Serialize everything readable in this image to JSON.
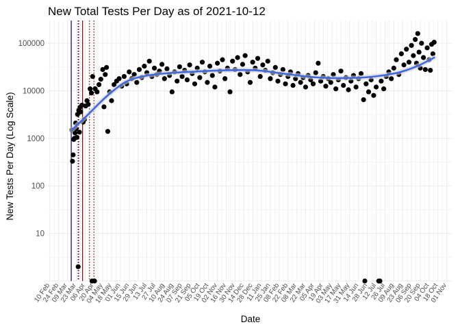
{
  "chart_data": {
    "type": "scatter",
    "title": "New Total Tests Per Day as of 2021-10-12",
    "xlabel": "Date",
    "ylabel": "New Tests Per Day (Log Scale)",
    "y_scale": "log10",
    "ylim": [
      1,
      300000
    ],
    "y_ticks": [
      10,
      100,
      1000,
      10000,
      100000
    ],
    "y_tick_labels": [
      "10",
      "100",
      "1000",
      "10000",
      "100000"
    ],
    "x_range": [
      "2020-02-07",
      "2021-11-09"
    ],
    "x_ticks": [
      "2020-02-10",
      "2020-02-24",
      "2020-03-09",
      "2020-03-23",
      "2020-04-06",
      "2020-04-20",
      "2020-05-04",
      "2020-05-18",
      "2020-06-01",
      "2020-06-15",
      "2020-06-29",
      "2020-07-13",
      "2020-07-27",
      "2020-08-10",
      "2020-08-24",
      "2020-09-07",
      "2020-09-21",
      "2020-10-05",
      "2020-10-19",
      "2020-11-02",
      "2020-11-16",
      "2020-11-30",
      "2020-12-14",
      "2020-12-28",
      "2021-01-11",
      "2021-01-25",
      "2021-02-08",
      "2021-02-22",
      "2021-03-08",
      "2021-03-22",
      "2021-04-05",
      "2021-04-19",
      "2021-05-03",
      "2021-05-17",
      "2021-05-31",
      "2021-06-14",
      "2021-06-28",
      "2021-07-12",
      "2021-07-26",
      "2021-08-09",
      "2021-08-23",
      "2021-09-06",
      "2021-09-20",
      "2021-10-04",
      "2021-10-18",
      "2021-11-01"
    ],
    "x_tick_labels": [
      "10 Feb",
      "24 Feb",
      "09 Mar",
      "23 Mar",
      "06 Apr",
      "20 Apr",
      "04 May",
      "18 May",
      "01 Jun",
      "15 Jun",
      "29 Jun",
      "13 Jul",
      "27 Jul",
      "10 Aug",
      "24 Aug",
      "07 Sep",
      "21 Sep",
      "05 Oct",
      "19 Oct",
      "02 Nov",
      "16 Nov",
      "30 Nov",
      "14 Dec",
      "28 Dec",
      "11 Jan",
      "25 Jan",
      "08 Feb",
      "22 Feb",
      "08 Mar",
      "22 Mar",
      "05 Apr",
      "19 Apr",
      "03 May",
      "17 May",
      "31 May",
      "14 Jun",
      "28 Jun",
      "12 Jul",
      "26 Jul",
      "09 Aug",
      "23 Aug",
      "06 Sep",
      "20 Sep",
      "04 Oct",
      "18 Oct",
      "01 Nov"
    ],
    "grid": true,
    "vlines": [
      {
        "x": "2020-03-15",
        "color": "#00008b",
        "style": "solid"
      },
      {
        "x": "2020-03-26",
        "color": "#00008b",
        "style": "dotted"
      },
      {
        "x": "2020-03-27",
        "color": "#8b0000",
        "style": "dotted"
      },
      {
        "x": "2020-04-02",
        "color": "#8b0000",
        "style": "solid"
      },
      {
        "x": "2020-04-13",
        "color": "#8b0000",
        "style": "dotted"
      },
      {
        "x": "2020-04-20",
        "color": "#8b0000",
        "style": "dotted"
      }
    ],
    "trend": {
      "color": "#4169e1",
      "points": [
        {
          "x": "2020-03-16",
          "y": 1500
        },
        {
          "x": "2020-04-10",
          "y": 3100
        },
        {
          "x": "2020-05-10",
          "y": 7600
        },
        {
          "x": "2020-06-10",
          "y": 15500
        },
        {
          "x": "2020-07-10",
          "y": 20500
        },
        {
          "x": "2020-08-15",
          "y": 23500
        },
        {
          "x": "2020-10-01",
          "y": 25500
        },
        {
          "x": "2020-11-15",
          "y": 27000
        },
        {
          "x": "2021-01-01",
          "y": 27000
        },
        {
          "x": "2021-02-15",
          "y": 23000
        },
        {
          "x": "2021-04-01",
          "y": 19500
        },
        {
          "x": "2021-05-15",
          "y": 18500
        },
        {
          "x": "2021-07-01",
          "y": 19500
        },
        {
          "x": "2021-08-15",
          "y": 24000
        },
        {
          "x": "2021-09-15",
          "y": 33000
        },
        {
          "x": "2021-10-12",
          "y": 50000
        }
      ]
    },
    "point_color": "#000000",
    "series": [
      {
        "points": [
          {
            "x": "2020-03-16",
            "y": 1500
          },
          {
            "x": "2020-03-17",
            "y": 330
          },
          {
            "x": "2020-03-18",
            "y": 450
          },
          {
            "x": "2020-03-19",
            "y": 950
          },
          {
            "x": "2020-03-20",
            "y": 1000
          },
          {
            "x": "2020-03-21",
            "y": 1300
          },
          {
            "x": "2020-03-22",
            "y": 2100
          },
          {
            "x": "2020-03-23",
            "y": 1600
          },
          {
            "x": "2020-03-24",
            "y": 1050
          },
          {
            "x": "2020-03-25",
            "y": 3200
          },
          {
            "x": "2020-03-26",
            "y": 2
          },
          {
            "x": "2020-03-27",
            "y": 3900
          },
          {
            "x": "2020-03-28",
            "y": 1350
          },
          {
            "x": "2020-03-29",
            "y": 4500
          },
          {
            "x": "2020-03-30",
            "y": 3600
          },
          {
            "x": "2020-04-01",
            "y": 5000
          },
          {
            "x": "2020-04-03",
            "y": 2200
          },
          {
            "x": "2020-04-05",
            "y": 2500
          },
          {
            "x": "2020-04-07",
            "y": 4800
          },
          {
            "x": "2020-04-09",
            "y": 6200
          },
          {
            "x": "2020-04-11",
            "y": 5200
          },
          {
            "x": "2020-04-14",
            "y": 11000
          },
          {
            "x": "2020-04-16",
            "y": 9000
          },
          {
            "x": "2020-04-17",
            "y": 1
          },
          {
            "x": "2020-04-18",
            "y": 20000
          },
          {
            "x": "2020-04-21",
            "y": 1
          },
          {
            "x": "2020-04-22",
            "y": 11000
          },
          {
            "x": "2020-04-25",
            "y": 9500
          },
          {
            "x": "2020-04-28",
            "y": 13500
          },
          {
            "x": "2020-05-01",
            "y": 17500
          },
          {
            "x": "2020-05-04",
            "y": 28000
          },
          {
            "x": "2020-05-06",
            "y": 4600
          },
          {
            "x": "2020-05-08",
            "y": 22000
          },
          {
            "x": "2020-05-10",
            "y": 31000
          },
          {
            "x": "2020-05-12",
            "y": 1400
          },
          {
            "x": "2020-05-15",
            "y": 9500
          },
          {
            "x": "2020-05-18",
            "y": 6200
          },
          {
            "x": "2020-05-22",
            "y": 13500
          },
          {
            "x": "2020-05-26",
            "y": 16000
          },
          {
            "x": "2020-05-30",
            "y": 18000
          },
          {
            "x": "2020-06-03",
            "y": 12500
          },
          {
            "x": "2020-06-07",
            "y": 20000
          },
          {
            "x": "2020-06-11",
            "y": 14000
          },
          {
            "x": "2020-06-15",
            "y": 25000
          },
          {
            "x": "2020-06-19",
            "y": 18000
          },
          {
            "x": "2020-06-23",
            "y": 22000
          },
          {
            "x": "2020-06-27",
            "y": 15000
          },
          {
            "x": "2020-07-01",
            "y": 28000
          },
          {
            "x": "2020-07-05",
            "y": 19000
          },
          {
            "x": "2020-07-09",
            "y": 33000
          },
          {
            "x": "2020-07-13",
            "y": 24000
          },
          {
            "x": "2020-07-17",
            "y": 42000
          },
          {
            "x": "2020-07-21",
            "y": 20000
          },
          {
            "x": "2020-07-25",
            "y": 30000
          },
          {
            "x": "2020-07-29",
            "y": 22000
          },
          {
            "x": "2020-08-02",
            "y": 26000
          },
          {
            "x": "2020-08-06",
            "y": 36000
          },
          {
            "x": "2020-08-10",
            "y": 18000
          },
          {
            "x": "2020-08-14",
            "y": 29000
          },
          {
            "x": "2020-08-18",
            "y": 21000
          },
          {
            "x": "2020-08-22",
            "y": 9500
          },
          {
            "x": "2020-08-26",
            "y": 25000
          },
          {
            "x": "2020-08-30",
            "y": 16000
          },
          {
            "x": "2020-09-03",
            "y": 32000
          },
          {
            "x": "2020-09-07",
            "y": 20000
          },
          {
            "x": "2020-09-11",
            "y": 27000
          },
          {
            "x": "2020-09-15",
            "y": 17000
          },
          {
            "x": "2020-09-19",
            "y": 35000
          },
          {
            "x": "2020-09-23",
            "y": 23000
          },
          {
            "x": "2020-09-27",
            "y": 14000
          },
          {
            "x": "2020-10-01",
            "y": 30000
          },
          {
            "x": "2020-10-05",
            "y": 19000
          },
          {
            "x": "2020-10-09",
            "y": 40000
          },
          {
            "x": "2020-10-13",
            "y": 25000
          },
          {
            "x": "2020-10-17",
            "y": 15000
          },
          {
            "x": "2020-10-21",
            "y": 33000
          },
          {
            "x": "2020-10-25",
            "y": 21000
          },
          {
            "x": "2020-10-29",
            "y": 12000
          },
          {
            "x": "2020-11-02",
            "y": 38000
          },
          {
            "x": "2020-11-06",
            "y": 26000
          },
          {
            "x": "2020-11-10",
            "y": 45000
          },
          {
            "x": "2020-11-14",
            "y": 18000
          },
          {
            "x": "2020-11-18",
            "y": 30000
          },
          {
            "x": "2020-11-22",
            "y": 9500
          },
          {
            "x": "2020-11-26",
            "y": 42000
          },
          {
            "x": "2020-11-30",
            "y": 28000
          },
          {
            "x": "2020-12-04",
            "y": 50000
          },
          {
            "x": "2020-12-08",
            "y": 22000
          },
          {
            "x": "2020-12-12",
            "y": 36000
          },
          {
            "x": "2020-12-16",
            "y": 55000
          },
          {
            "x": "2020-12-20",
            "y": 25000
          },
          {
            "x": "2020-12-24",
            "y": 15000
          },
          {
            "x": "2020-12-28",
            "y": 40000
          },
          {
            "x": "2021-01-01",
            "y": 30000
          },
          {
            "x": "2021-01-05",
            "y": 48000
          },
          {
            "x": "2021-01-09",
            "y": 20000
          },
          {
            "x": "2021-01-13",
            "y": 35000
          },
          {
            "x": "2021-01-17",
            "y": 27000
          },
          {
            "x": "2021-01-21",
            "y": 42000
          },
          {
            "x": "2021-01-25",
            "y": 18000
          },
          {
            "x": "2021-01-29",
            "y": 24000
          },
          {
            "x": "2021-02-02",
            "y": 31000
          },
          {
            "x": "2021-02-06",
            "y": 16000
          },
          {
            "x": "2021-02-10",
            "y": 22000
          },
          {
            "x": "2021-02-14",
            "y": 28000
          },
          {
            "x": "2021-02-18",
            "y": 14000
          },
          {
            "x": "2021-02-22",
            "y": 20000
          },
          {
            "x": "2021-02-26",
            "y": 25000
          },
          {
            "x": "2021-03-02",
            "y": 13000
          },
          {
            "x": "2021-03-06",
            "y": 18000
          },
          {
            "x": "2021-03-10",
            "y": 23000
          },
          {
            "x": "2021-03-14",
            "y": 15000
          },
          {
            "x": "2021-03-18",
            "y": 19000
          },
          {
            "x": "2021-03-22",
            "y": 12000
          },
          {
            "x": "2021-03-26",
            "y": 21000
          },
          {
            "x": "2021-03-30",
            "y": 17000
          },
          {
            "x": "2021-04-03",
            "y": 14000
          },
          {
            "x": "2021-04-07",
            "y": 24000
          },
          {
            "x": "2021-04-11",
            "y": 38000
          },
          {
            "x": "2021-04-15",
            "y": 16000
          },
          {
            "x": "2021-04-19",
            "y": 20000
          },
          {
            "x": "2021-04-23",
            "y": 12500
          },
          {
            "x": "2021-04-27",
            "y": 18000
          },
          {
            "x": "2021-05-01",
            "y": 15000
          },
          {
            "x": "2021-05-05",
            "y": 22000
          },
          {
            "x": "2021-05-09",
            "y": 11000
          },
          {
            "x": "2021-05-13",
            "y": 17000
          },
          {
            "x": "2021-05-17",
            "y": 26000
          },
          {
            "x": "2021-05-21",
            "y": 13000
          },
          {
            "x": "2021-05-25",
            "y": 19000
          },
          {
            "x": "2021-05-29",
            "y": 10500
          },
          {
            "x": "2021-06-02",
            "y": 16000
          },
          {
            "x": "2021-06-06",
            "y": 21000
          },
          {
            "x": "2021-06-10",
            "y": 12000
          },
          {
            "x": "2021-06-14",
            "y": 18000
          },
          {
            "x": "2021-06-18",
            "y": 23000
          },
          {
            "x": "2021-06-22",
            "y": 6500
          },
          {
            "x": "2021-06-24",
            "y": 1
          },
          {
            "x": "2021-06-26",
            "y": 14000
          },
          {
            "x": "2021-06-30",
            "y": 9500
          },
          {
            "x": "2021-07-04",
            "y": 17000
          },
          {
            "x": "2021-07-08",
            "y": 8000
          },
          {
            "x": "2021-07-12",
            "y": 12000
          },
          {
            "x": "2021-07-16",
            "y": 1
          },
          {
            "x": "2021-07-18",
            "y": 1
          },
          {
            "x": "2021-07-20",
            "y": 16000
          },
          {
            "x": "2021-07-24",
            "y": 11000
          },
          {
            "x": "2021-07-28",
            "y": 20000
          },
          {
            "x": "2021-08-01",
            "y": 25000
          },
          {
            "x": "2021-08-05",
            "y": 18000
          },
          {
            "x": "2021-08-09",
            "y": 30000
          },
          {
            "x": "2021-08-13",
            "y": 45000
          },
          {
            "x": "2021-08-17",
            "y": 22000
          },
          {
            "x": "2021-08-21",
            "y": 60000
          },
          {
            "x": "2021-08-25",
            "y": 35000
          },
          {
            "x": "2021-08-29",
            "y": 75000
          },
          {
            "x": "2021-09-02",
            "y": 40000
          },
          {
            "x": "2021-09-06",
            "y": 90000
          },
          {
            "x": "2021-09-09",
            "y": 55000
          },
          {
            "x": "2021-09-12",
            "y": 120000
          },
          {
            "x": "2021-09-14",
            "y": 38000
          },
          {
            "x": "2021-09-16",
            "y": 160000
          },
          {
            "x": "2021-09-18",
            "y": 65000
          },
          {
            "x": "2021-09-20",
            "y": 30000
          },
          {
            "x": "2021-09-22",
            "y": 100000
          },
          {
            "x": "2021-09-25",
            "y": 50000
          },
          {
            "x": "2021-09-28",
            "y": 28000
          },
          {
            "x": "2021-10-01",
            "y": 80000
          },
          {
            "x": "2021-10-04",
            "y": 45000
          },
          {
            "x": "2021-10-06",
            "y": 27000
          },
          {
            "x": "2021-10-08",
            "y": 95000
          },
          {
            "x": "2021-10-10",
            "y": 60000
          },
          {
            "x": "2021-10-12",
            "y": 105000
          }
        ]
      }
    ]
  }
}
